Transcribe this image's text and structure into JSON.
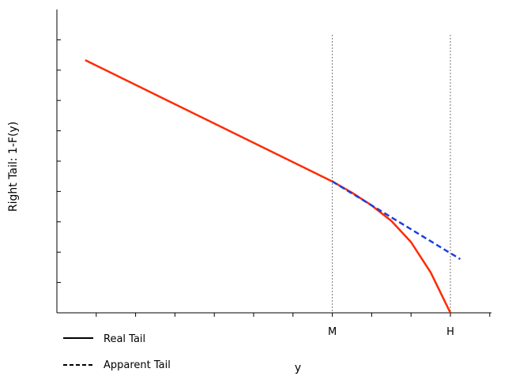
{
  "chart_data": {
    "type": "line",
    "title": "",
    "xlabel": "y",
    "ylabel": "Right Tail: 1-F(y)",
    "x_tick_count": 11,
    "y_tick_count": 9,
    "named_x_ticks": [
      {
        "x": 7,
        "label": "M"
      },
      {
        "x": 10,
        "label": "H"
      }
    ],
    "xlim": [
      0,
      11
    ],
    "ylim": [
      0,
      10
    ],
    "reference_lines": [
      {
        "x": 7,
        "style": "dotted",
        "color": "#777777"
      },
      {
        "x": 10,
        "style": "dotted",
        "color": "#777777"
      }
    ],
    "series": [
      {
        "name": "Real Tail",
        "color": "#ff2a00",
        "dash": "solid",
        "x": [
          0.72,
          7.0,
          7.5,
          8.0,
          8.5,
          9.0,
          9.5,
          10.0
        ],
        "y": [
          8.33,
          4.33,
          3.96,
          3.54,
          3.03,
          2.33,
          1.33,
          0.0
        ]
      },
      {
        "name": "Apparent Tail",
        "color": "#1f3fe0",
        "dash": "dashed",
        "x": [
          7.0,
          10.25
        ],
        "y": [
          4.33,
          1.77
        ]
      }
    ],
    "legend": {
      "placement": "bottom-left",
      "items": [
        {
          "label": "Real Tail",
          "dash": "solid"
        },
        {
          "label": "Apparent Tail",
          "dash": "dashed"
        }
      ]
    }
  }
}
